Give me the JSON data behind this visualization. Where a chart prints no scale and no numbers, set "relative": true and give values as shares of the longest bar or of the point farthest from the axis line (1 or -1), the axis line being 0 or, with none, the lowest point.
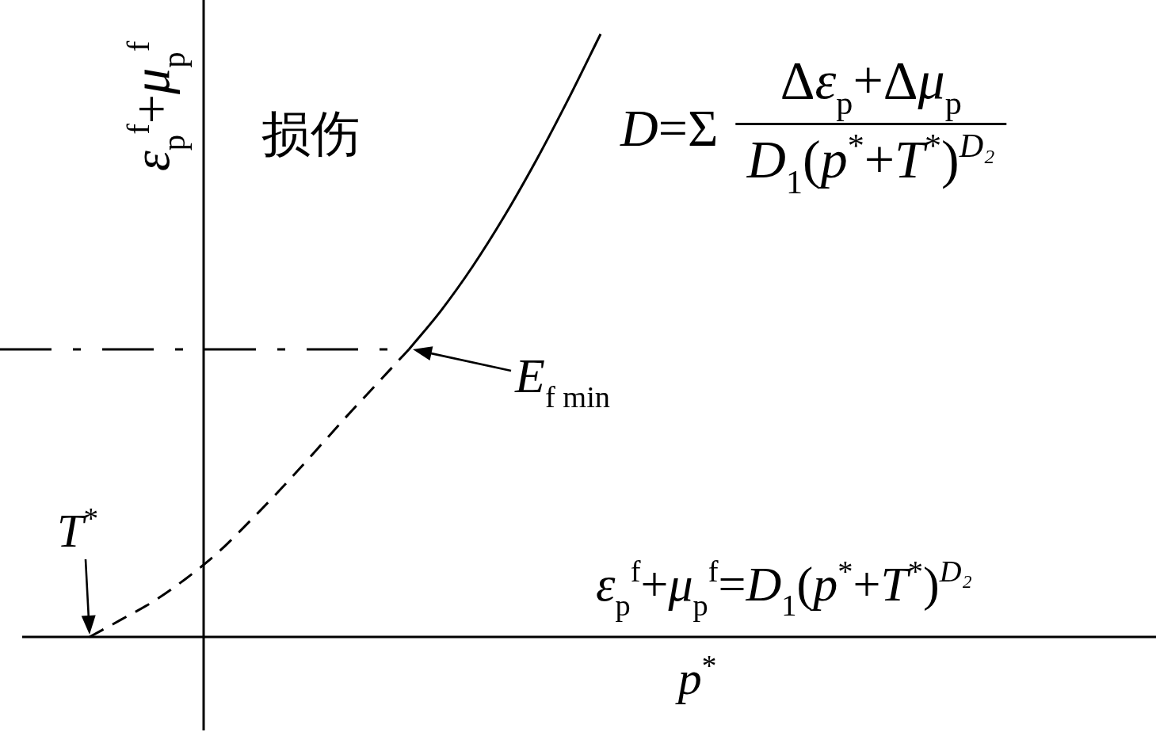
{
  "chart_data": {
    "type": "line",
    "relative": true,
    "xlabel": "p$^{*}$",
    "ylabel": "ε$_{p}$$^{f}$+μ$_{p}$$^{f}$",
    "categories": [
      null,
      null,
      null,
      null,
      null,
      null,
      null,
      null,
      null,
      null,
      null,
      null,
      null,
      null,
      null,
      null,
      null
    ],
    "series": [
      {
        "color": "#000000",
        "line_style": "dashed",
        "values": [
          0,
          0.029,
          0.059,
          0.096,
          0.139,
          0.191,
          0.246,
          0.304,
          0.363,
          0.42,
          0.477,
          null,
          null,
          null,
          null,
          null,
          null
        ]
      },
      {
        "color": "#000000",
        "line_style": "solid",
        "values": [
          null,
          null,
          null,
          null,
          null,
          null,
          null,
          null,
          null,
          null,
          0.477,
          0.541,
          0.615,
          0.699,
          0.792,
          0.893,
          1
        ]
      }
    ],
    "ref_lines": [
      {
        "axis": "y",
        "value": 0.477,
        "color": "#000000",
        "line_style": "dashdot"
      }
    ],
    "annotations": [
      "损伤",
      "D=Σ",
      "Δε$_{p}$+Δμ$_{p}$",
      "D$_{1}$(p$^{*}$+T$^{*}$)$^{D₂}$",
      "ε$_{p}$$^{f}$+μ$_{p}$$^{f}$=D$_{1}$(p$^{*}$+T$^{*}$)$^{D₂}$",
      "E$_{f min}$",
      "T$^{*}$"
    ]
  }
}
